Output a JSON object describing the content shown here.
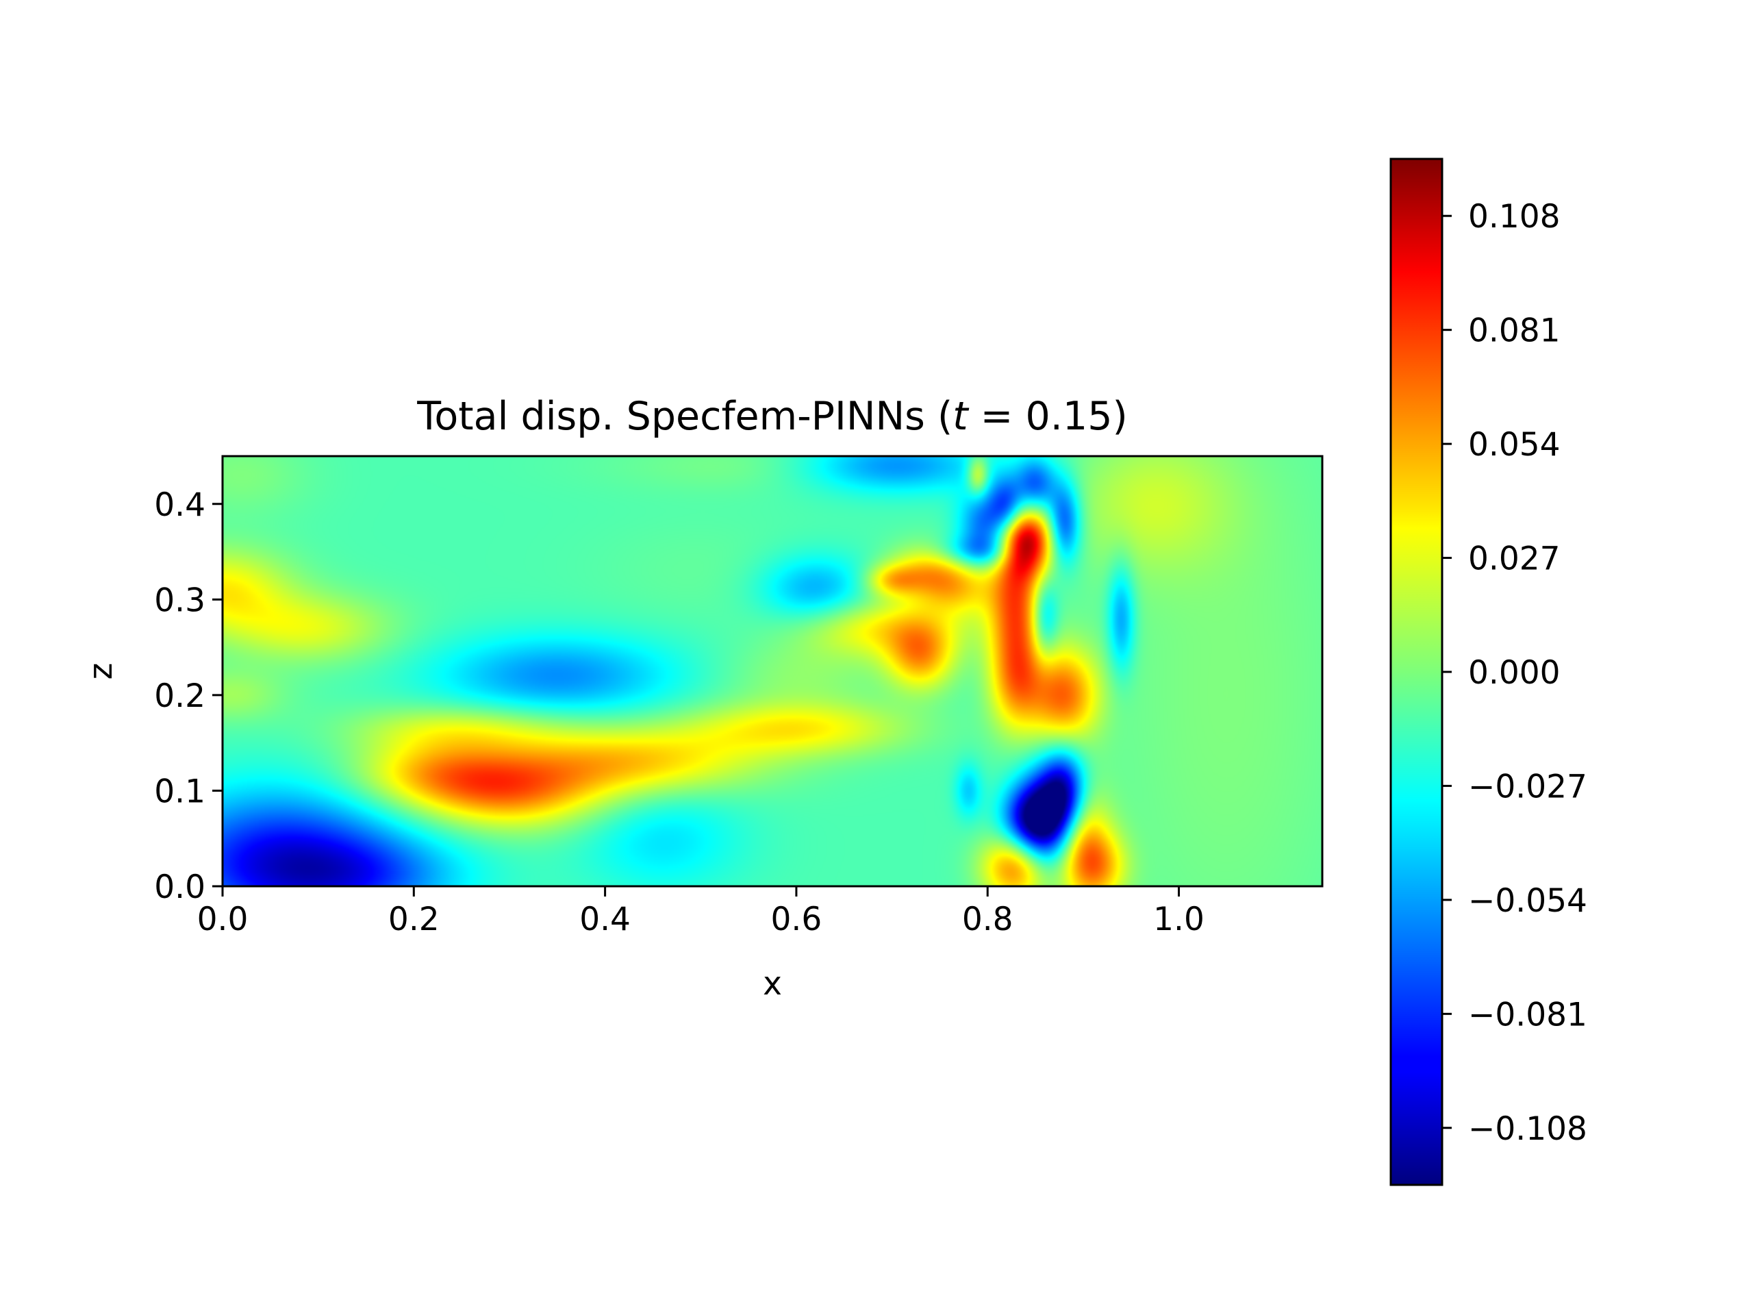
{
  "chart_data": [
    {
      "type": "heatmap",
      "title_main": "Total disp. Specfem-PINNs (",
      "title_var": "t",
      "title_eq": " = 0.15)",
      "xlabel": "x",
      "ylabel": "z",
      "xlim": [
        0.0,
        1.15
      ],
      "ylim": [
        0.0,
        0.45
      ],
      "xticks": [
        {
          "value": 0.0,
          "label": "0.0"
        },
        {
          "value": 0.2,
          "label": "0.2"
        },
        {
          "value": 0.4,
          "label": "0.4"
        },
        {
          "value": 0.6,
          "label": "0.6"
        },
        {
          "value": 0.8,
          "label": "0.8"
        },
        {
          "value": 1.0,
          "label": "1.0"
        }
      ],
      "yticks": [
        {
          "value": 0.0,
          "label": "0.0"
        },
        {
          "value": 0.1,
          "label": "0.1"
        },
        {
          "value": 0.2,
          "label": "0.2"
        },
        {
          "value": 0.3,
          "label": "0.3"
        },
        {
          "value": 0.4,
          "label": "0.4"
        }
      ],
      "grid": false,
      "colormap": "jet",
      "background_value": -0.012,
      "features": [
        {
          "x": 0.0,
          "z": 0.31,
          "sx": 0.05,
          "sz": 0.03,
          "v": 0.045
        },
        {
          "x": 0.09,
          "z": 0.27,
          "sx": 0.06,
          "sz": 0.025,
          "v": 0.035
        },
        {
          "x": 0.01,
          "z": 0.2,
          "sx": 0.04,
          "sz": 0.02,
          "v": 0.02
        },
        {
          "x": 0.06,
          "z": 0.03,
          "sx": 0.09,
          "sz": 0.05,
          "v": -0.075
        },
        {
          "x": 0.14,
          "z": 0.01,
          "sx": 0.08,
          "sz": 0.03,
          "v": -0.04
        },
        {
          "x": 0.02,
          "z": 0.43,
          "sx": 0.05,
          "sz": 0.03,
          "v": 0.012
        },
        {
          "x": 0.3,
          "z": 0.1,
          "sx": 0.07,
          "sz": 0.028,
          "v": 0.068
        },
        {
          "x": 0.22,
          "z": 0.12,
          "sx": 0.06,
          "sz": 0.025,
          "v": 0.045
        },
        {
          "x": 0.43,
          "z": 0.13,
          "sx": 0.09,
          "sz": 0.025,
          "v": 0.055
        },
        {
          "x": 0.6,
          "z": 0.165,
          "sx": 0.08,
          "sz": 0.02,
          "v": 0.045
        },
        {
          "x": 0.25,
          "z": 0.165,
          "sx": 0.08,
          "sz": 0.018,
          "v": 0.032
        },
        {
          "x": 0.35,
          "z": 0.22,
          "sx": 0.09,
          "sz": 0.03,
          "v": -0.045
        },
        {
          "x": 0.6,
          "z": 0.22,
          "sx": 0.06,
          "sz": 0.025,
          "v": 0.015
        },
        {
          "x": 0.62,
          "z": 0.31,
          "sx": 0.04,
          "sz": 0.025,
          "v": -0.04
        },
        {
          "x": 0.7,
          "z": 0.44,
          "sx": 0.07,
          "sz": 0.02,
          "v": -0.05
        },
        {
          "x": 0.58,
          "z": 0.44,
          "sx": 0.12,
          "sz": 0.02,
          "v": 0.012
        },
        {
          "x": 0.69,
          "z": 0.27,
          "sx": 0.06,
          "sz": 0.022,
          "v": 0.045
        },
        {
          "x": 0.74,
          "z": 0.33,
          "sx": 0.03,
          "sz": 0.02,
          "v": 0.05
        },
        {
          "x": 0.7,
          "z": 0.32,
          "sx": 0.02,
          "sz": 0.012,
          "v": 0.045
        },
        {
          "x": 0.73,
          "z": 0.24,
          "sx": 0.025,
          "sz": 0.025,
          "v": 0.06
        },
        {
          "x": 0.77,
          "z": 0.31,
          "sx": 0.03,
          "sz": 0.02,
          "v": 0.04
        },
        {
          "x": 0.8,
          "z": 0.38,
          "sx": 0.02,
          "sz": 0.025,
          "v": -0.06
        },
        {
          "x": 0.82,
          "z": 0.4,
          "sx": 0.012,
          "sz": 0.02,
          "v": -0.05
        },
        {
          "x": 0.79,
          "z": 0.35,
          "sx": 0.03,
          "sz": 0.012,
          "v": -0.04
        },
        {
          "x": 0.79,
          "z": 0.43,
          "sx": 0.008,
          "sz": 0.015,
          "v": 0.05
        },
        {
          "x": 0.84,
          "z": 0.36,
          "sx": 0.02,
          "sz": 0.025,
          "v": 0.11
        },
        {
          "x": 0.83,
          "z": 0.3,
          "sx": 0.02,
          "sz": 0.04,
          "v": 0.07
        },
        {
          "x": 0.86,
          "z": 0.28,
          "sx": 0.01,
          "sz": 0.03,
          "v": -0.045
        },
        {
          "x": 0.83,
          "z": 0.22,
          "sx": 0.02,
          "sz": 0.04,
          "v": 0.07
        },
        {
          "x": 0.88,
          "z": 0.2,
          "sx": 0.025,
          "sz": 0.035,
          "v": 0.075
        },
        {
          "x": 0.86,
          "z": 0.07,
          "sx": 0.02,
          "sz": 0.035,
          "v": -0.1
        },
        {
          "x": 0.88,
          "z": 0.1,
          "sx": 0.016,
          "sz": 0.03,
          "v": -0.08
        },
        {
          "x": 0.84,
          "z": 0.07,
          "sx": 0.02,
          "sz": 0.025,
          "v": -0.06
        },
        {
          "x": 0.85,
          "z": 0.42,
          "sx": 0.015,
          "sz": 0.02,
          "v": -0.06
        },
        {
          "x": 0.88,
          "z": 0.38,
          "sx": 0.012,
          "sz": 0.03,
          "v": -0.07
        },
        {
          "x": 0.83,
          "z": 0.02,
          "sx": 0.025,
          "sz": 0.025,
          "v": 0.075
        },
        {
          "x": 0.9,
          "z": 0.04,
          "sx": 0.02,
          "sz": 0.04,
          "v": 0.06
        },
        {
          "x": 0.92,
          "z": 0.02,
          "sx": 0.02,
          "sz": 0.025,
          "v": 0.04
        },
        {
          "x": 0.94,
          "z": 0.28,
          "sx": 0.01,
          "sz": 0.04,
          "v": -0.045
        },
        {
          "x": 0.78,
          "z": 0.1,
          "sx": 0.01,
          "sz": 0.02,
          "v": -0.03
        },
        {
          "x": 1.05,
          "z": 0.2,
          "sx": 0.1,
          "sz": 0.25,
          "v": 0.012
        },
        {
          "x": 0.97,
          "z": 0.4,
          "sx": 0.06,
          "sz": 0.05,
          "v": 0.025
        },
        {
          "x": 0.5,
          "z": 0.33,
          "sx": 0.08,
          "sz": 0.04,
          "v": 0.005
        },
        {
          "x": 0.46,
          "z": 0.05,
          "sx": 0.06,
          "sz": 0.04,
          "v": -0.025
        }
      ]
    },
    {
      "type": "colorbar",
      "colormap": "jet",
      "vmin": -0.1215,
      "vmax": 0.1215,
      "ticks": [
        {
          "value": 0.108,
          "label": "0.108"
        },
        {
          "value": 0.081,
          "label": "0.081"
        },
        {
          "value": 0.054,
          "label": "0.054"
        },
        {
          "value": 0.027,
          "label": "0.027"
        },
        {
          "value": 0.0,
          "label": "0.000"
        },
        {
          "value": -0.027,
          "label": "−0.027"
        },
        {
          "value": -0.054,
          "label": "−0.054"
        },
        {
          "value": -0.081,
          "label": "−0.081"
        },
        {
          "value": -0.108,
          "label": "−0.108"
        }
      ]
    }
  ]
}
